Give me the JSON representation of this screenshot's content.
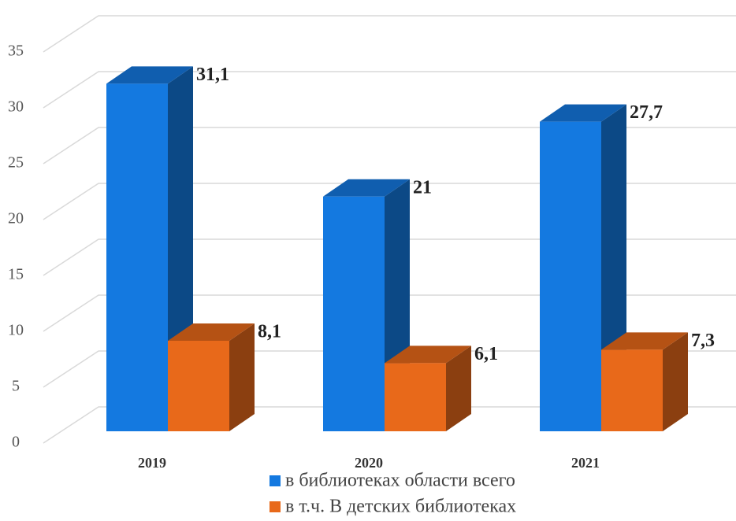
{
  "chart_data": {
    "type": "bar3d",
    "categories": [
      "2019",
      "2020",
      "2021"
    ],
    "series": [
      {
        "name": "в библиотеках области всего",
        "color": "#1479e0",
        "values": [
          31.1,
          21,
          27.7
        ],
        "value_labels": [
          "31,1",
          "21",
          "27,7"
        ]
      },
      {
        "name": "в т.ч. В детских библиотеках",
        "color": "#e8691a",
        "values": [
          8.1,
          6.1,
          7.3
        ],
        "value_labels": [
          "8,1",
          "6,1",
          "7,3"
        ]
      }
    ],
    "ylim": [
      0,
      35
    ],
    "yticks": [
      0,
      5,
      10,
      15,
      20,
      25,
      30,
      35
    ],
    "grid": true
  }
}
